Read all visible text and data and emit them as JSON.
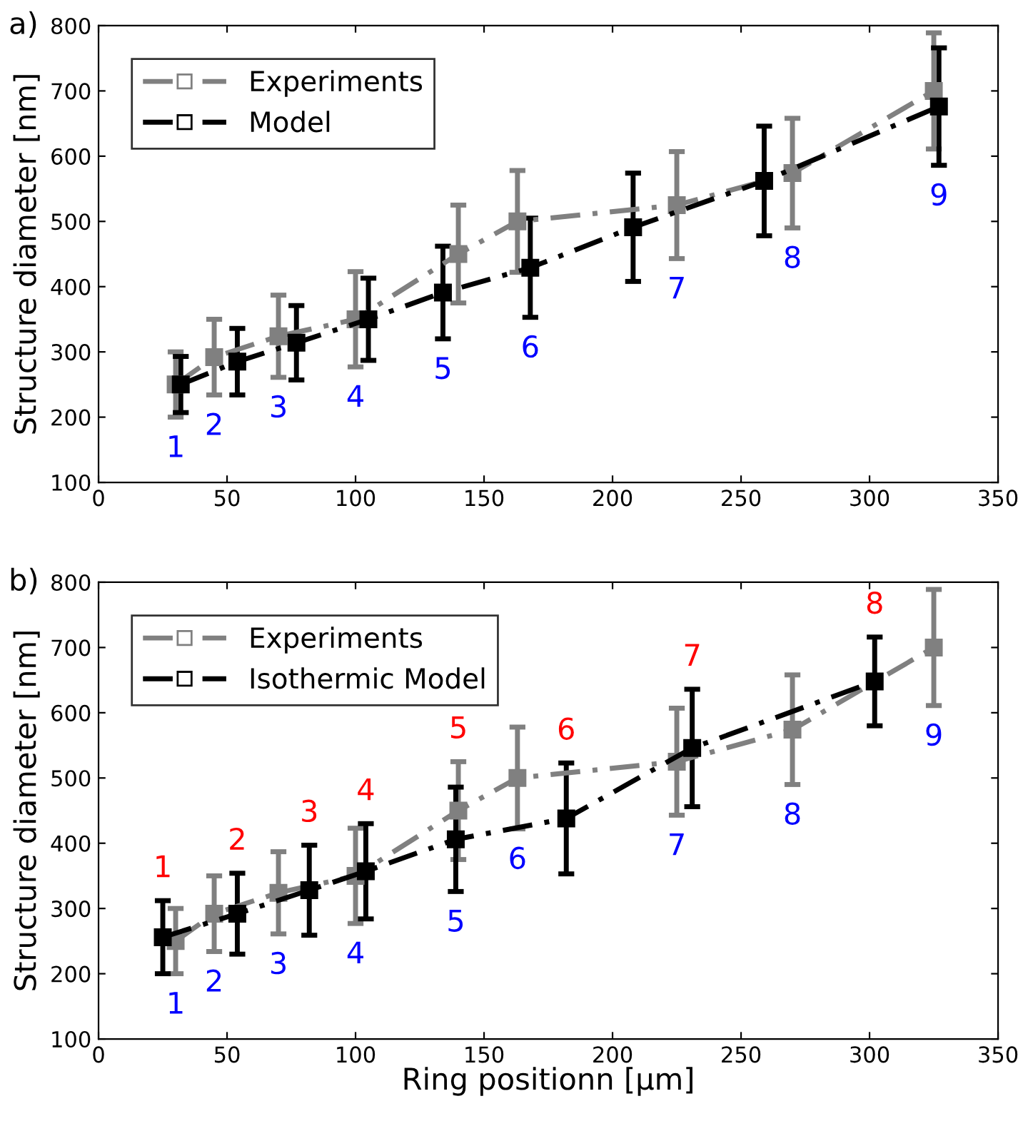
{
  "chart_data": [
    {
      "type": "line",
      "title": "a)",
      "ylabel": "Structure diameter [nm]",
      "xlim": [
        0,
        350
      ],
      "xticks": [
        0,
        50,
        100,
        150,
        200,
        250,
        300,
        350
      ],
      "ylim": [
        100,
        800
      ],
      "yticks": [
        100,
        200,
        300,
        400,
        500,
        600,
        700,
        800
      ],
      "grid": false,
      "legend": "top left",
      "marker": "square",
      "line_style": "dashed",
      "series": [
        {
          "name": "Experiments",
          "color": "#808080",
          "x": [
            30,
            45,
            70,
            100,
            140,
            163,
            225,
            270,
            325
          ],
          "values": [
            250,
            292,
            324,
            350,
            450,
            500,
            525,
            574,
            700
          ],
          "errors": [
            50,
            58,
            63,
            73,
            75,
            78,
            82,
            84,
            89
          ]
        },
        {
          "name": "Model",
          "color": "#000000",
          "x": [
            32,
            54,
            77,
            105,
            134,
            168,
            208,
            259,
            327
          ],
          "values": [
            250,
            285,
            314,
            350,
            391,
            429,
            491,
            562,
            676
          ],
          "errors": [
            43,
            51,
            57,
            63,
            71,
            76,
            83,
            84,
            90
          ]
        }
      ],
      "annotations": [
        {
          "text": "1",
          "x": 30,
          "y": 250
        },
        {
          "text": "2",
          "x": 45,
          "y": 292
        },
        {
          "text": "3",
          "x": 70,
          "y": 324
        },
        {
          "text": "4",
          "x": 100,
          "y": 350
        },
        {
          "text": "5",
          "x": 134,
          "y": 391
        },
        {
          "text": "6",
          "x": 168,
          "y": 429
        },
        {
          "text": "7",
          "x": 225,
          "y": 525
        },
        {
          "text": "8",
          "x": 270,
          "y": 574
        },
        {
          "text": "9",
          "x": 327,
          "y": 676
        }
      ]
    },
    {
      "type": "line",
      "title": "b)",
      "xlabel": "Ring positionn [µm]",
      "ylabel": "Structure diameter [nm]",
      "xlim": [
        0,
        350
      ],
      "xticks": [
        0,
        50,
        100,
        150,
        200,
        250,
        300,
        350
      ],
      "ylim": [
        100,
        800
      ],
      "yticks": [
        100,
        200,
        300,
        400,
        500,
        600,
        700,
        800
      ],
      "grid": false,
      "legend": "top left",
      "marker": "square",
      "line_style": "dashed",
      "series": [
        {
          "name": "Experiments",
          "color": "#808080",
          "x": [
            30,
            45,
            70,
            100,
            140,
            163,
            225,
            270,
            325
          ],
          "values": [
            250,
            292,
            324,
            350,
            450,
            500,
            525,
            574,
            700
          ],
          "errors": [
            50,
            58,
            63,
            73,
            75,
            78,
            82,
            84,
            89
          ]
        },
        {
          "name": "Isothermic Model",
          "color": "#000000",
          "x": [
            25,
            54,
            82,
            104,
            139,
            182,
            231,
            302
          ],
          "values": [
            256,
            292,
            328,
            357,
            406,
            438,
            546,
            648
          ],
          "errors": [
            56,
            62,
            69,
            73,
            80,
            85,
            90,
            68
          ]
        }
      ],
      "annotations": [
        {
          "text": "1",
          "x": 30,
          "y": 250
        },
        {
          "text": "2",
          "x": 45,
          "y": 292
        },
        {
          "text": "3",
          "x": 70,
          "y": 324
        },
        {
          "text": "4",
          "x": 100,
          "y": 350
        },
        {
          "text": "5",
          "x": 139,
          "y": 406
        },
        {
          "text": "6",
          "x": 163,
          "y": 500
        },
        {
          "text": "7",
          "x": 225,
          "y": 525
        },
        {
          "text": "8",
          "x": 270,
          "y": 574
        },
        {
          "text": "9",
          "x": 325,
          "y": 700
        },
        {
          "text": "1",
          "x": 25,
          "y": 256
        },
        {
          "text": "2",
          "x": 54,
          "y": 292
        },
        {
          "text": "3",
          "x": 82,
          "y": 328
        },
        {
          "text": "4",
          "x": 104,
          "y": 357
        },
        {
          "text": "5",
          "x": 140,
          "y": 450
        },
        {
          "text": "6",
          "x": 182,
          "y": 438
        },
        {
          "text": "7",
          "x": 231,
          "y": 546
        },
        {
          "text": "8",
          "x": 302,
          "y": 648
        }
      ]
    }
  ]
}
